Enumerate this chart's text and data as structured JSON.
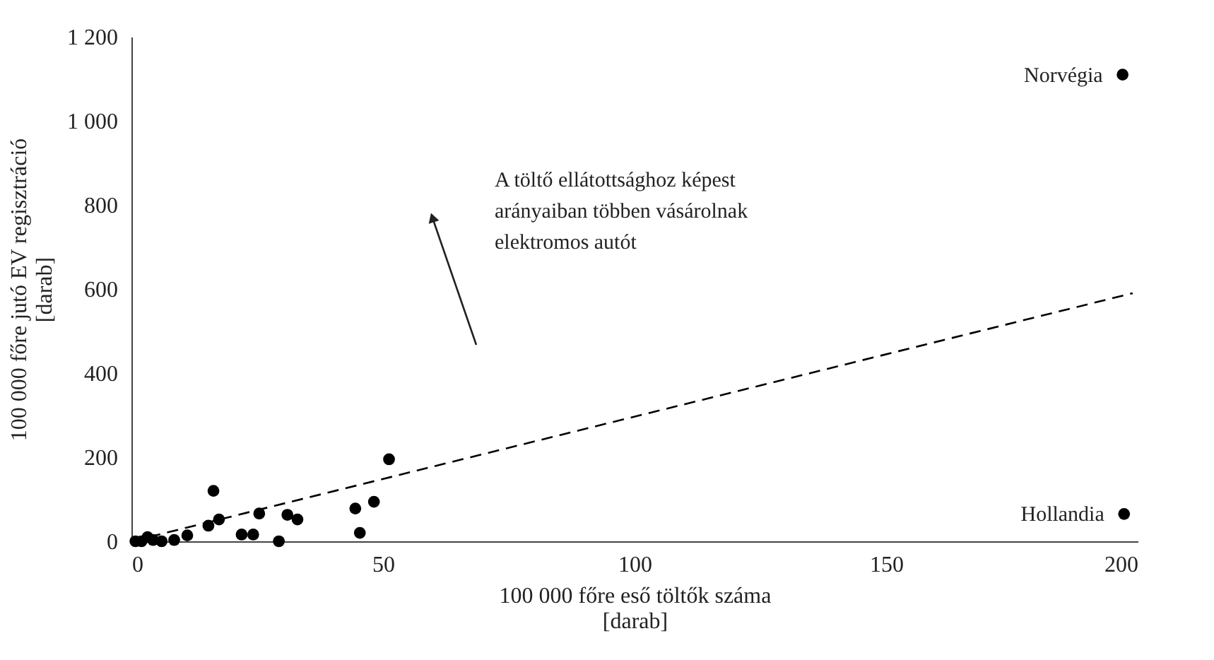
{
  "chart_data": {
    "type": "scatter",
    "xlabel": "100 000 főre eső töltők száma\n[darab]",
    "ylabel": "100 000 főre jutó EV regisztráció\n[darab]",
    "xlim": [
      0,
      200
    ],
    "xticks": [
      0,
      50,
      100,
      150,
      200
    ],
    "ylim": [
      0,
      1200
    ],
    "yticks": [
      0,
      200,
      400,
      600,
      800,
      {
        "value": 1000,
        "label": "1 000"
      },
      {
        "value": 1200,
        "label": "1 200"
      }
    ],
    "grid": false,
    "series": [
      {
        "color": "#000000",
        "marker": "circle",
        "x": [
          0.8,
          2,
          3.2,
          4.3,
          6,
          8.5,
          11.1,
          15.3,
          16.3,
          17.4,
          21.9,
          24.2,
          25.4,
          29.3,
          31,
          33,
          44.5,
          45.4,
          48.2,
          51.2,
          197,
          197.3
        ],
        "values": [
          0,
          0,
          10,
          3,
          0,
          3,
          14,
          37,
          120,
          52,
          16,
          16,
          66,
          0,
          63,
          52,
          78,
          20,
          94,
          195,
          1110,
          65
        ]
      },
      {
        "type": "line",
        "line_style": "dashed",
        "color": "#000000",
        "x": [
          0,
          199
        ],
        "values": [
          0,
          590
        ]
      }
    ],
    "annotations": [
      {
        "text": "Norvégia",
        "x": 197,
        "y": 1110
      },
      {
        "text": "Hollandia",
        "x": 197.3,
        "y": 65
      },
      "A töltő ellátottsághoz képest\narányaiban többen vásárolnak\nelektromos autót"
    ]
  }
}
